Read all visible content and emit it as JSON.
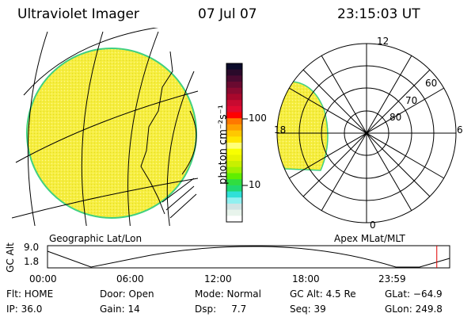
{
  "header": {
    "title": "Ultraviolet Imager",
    "date": "07 Jul 07",
    "time": "23:15:03 UT"
  },
  "colorbar": {
    "label": "photon cm⁻²s⁻¹",
    "ticks": [
      "100",
      "10"
    ],
    "colors": [
      "#0a0a2a",
      "#2a0a2a",
      "#4a0a30",
      "#6a0a30",
      "#8a0a30",
      "#a8082c",
      "#c80a30",
      "#e00a30",
      "#ff0000",
      "#ff7800",
      "#ffa000",
      "#ffc800",
      "#ffe600",
      "#ffff78",
      "#f8ff00",
      "#e8f400",
      "#c8f000",
      "#a0f000",
      "#60ee00",
      "#30dd40",
      "#20d870",
      "#30e0d8",
      "#90f0f0",
      "#d0e4e4",
      "#e8f4ec",
      "#ffffff"
    ]
  },
  "left_panel": {
    "caption": "Geographic Lat/Lon"
  },
  "right_panel": {
    "caption": "Apex MLat/MLT",
    "mlt_labels": {
      "top": "12",
      "left": "18",
      "right": "6",
      "bottom": "0"
    },
    "lat_labels": [
      "60",
      "70",
      "80"
    ]
  },
  "altitude_plot": {
    "ylabel": "GC Alt",
    "yticks": [
      "9.0",
      "1.8"
    ],
    "xticks": [
      "00:00",
      "06:00",
      "12:00",
      "18:00",
      "23:59"
    ],
    "current_time_fraction": 0.968
  },
  "status": {
    "flt": "Flt: HOME",
    "ip": "IP: 36.0",
    "door": "Door: Open",
    "gain": "Gain: 14",
    "mode": "Mode: Normal",
    "dsp": "Dsp:     7.7",
    "gcalt": "GC Alt: 4.5 Re",
    "seq": "Seq: 39",
    "glat": "GLat: −64.9",
    "glon": "GLon: 249.8"
  },
  "colors": {
    "image": "#f4ec3a",
    "edge": "#40d080",
    "marker": "#e00000"
  }
}
